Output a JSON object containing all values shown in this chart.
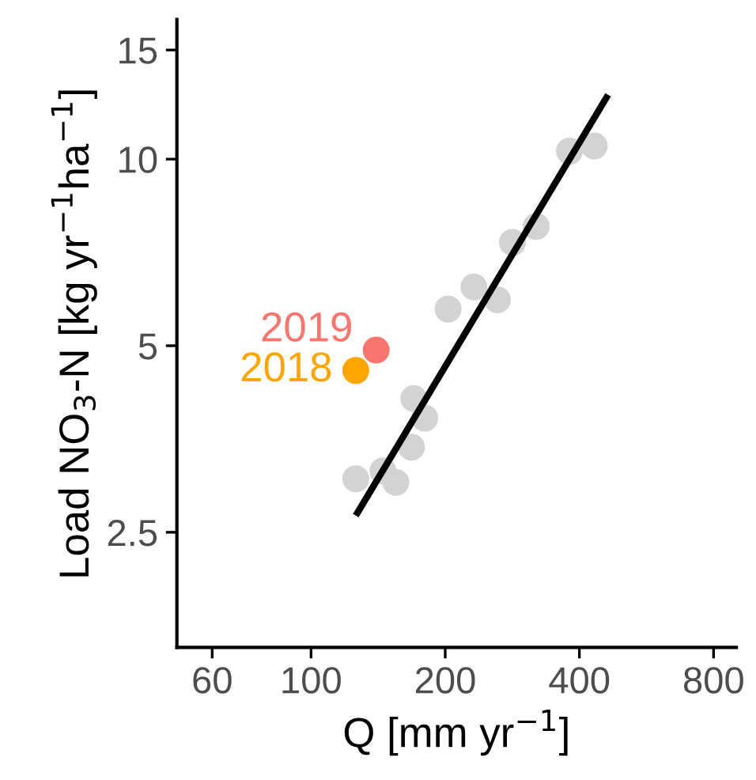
{
  "chart_data": {
    "type": "scatter",
    "xlabel": "Q [mm yr$^{−1}$]",
    "ylabel": "Load NO$_{3}$-N [kg yr$^{−1}$ha$^{−1}$]",
    "log": "xy",
    "grid": false,
    "xlim": [
      50,
      900
    ],
    "xticks": [
      60,
      100,
      200,
      400,
      800
    ],
    "ylim": [
      1.63,
      16.8
    ],
    "yticks": [
      2.5,
      5,
      10,
      15
    ],
    "series": [
      {
        "color": "#d3d3d3",
        "marker": "circle",
        "x": [
          126,
          145,
          155,
          170,
          180,
          168,
          203,
          232,
          262,
          283,
          320,
          380,
          432
        ],
        "values": [
          3.05,
          3.14,
          3.01,
          4.11,
          3.82,
          3.43,
          5.73,
          6.22,
          5.93,
          7.34,
          7.79,
          10.3,
          10.5
        ]
      },
      {
        "name": "2019",
        "color": "#f8766d",
        "marker": "circle",
        "x": [
          140
        ],
        "values": [
          4.92
        ]
      },
      {
        "name": "2018",
        "color": "#ffa500",
        "marker": "circle",
        "x": [
          126
        ],
        "values": [
          4.56
        ]
      },
      {
        "type": "line",
        "marker": "none",
        "color": "#000000",
        "x": [
          126,
          464
        ],
        "values": [
          2.66,
          12.7
        ]
      }
    ]
  }
}
